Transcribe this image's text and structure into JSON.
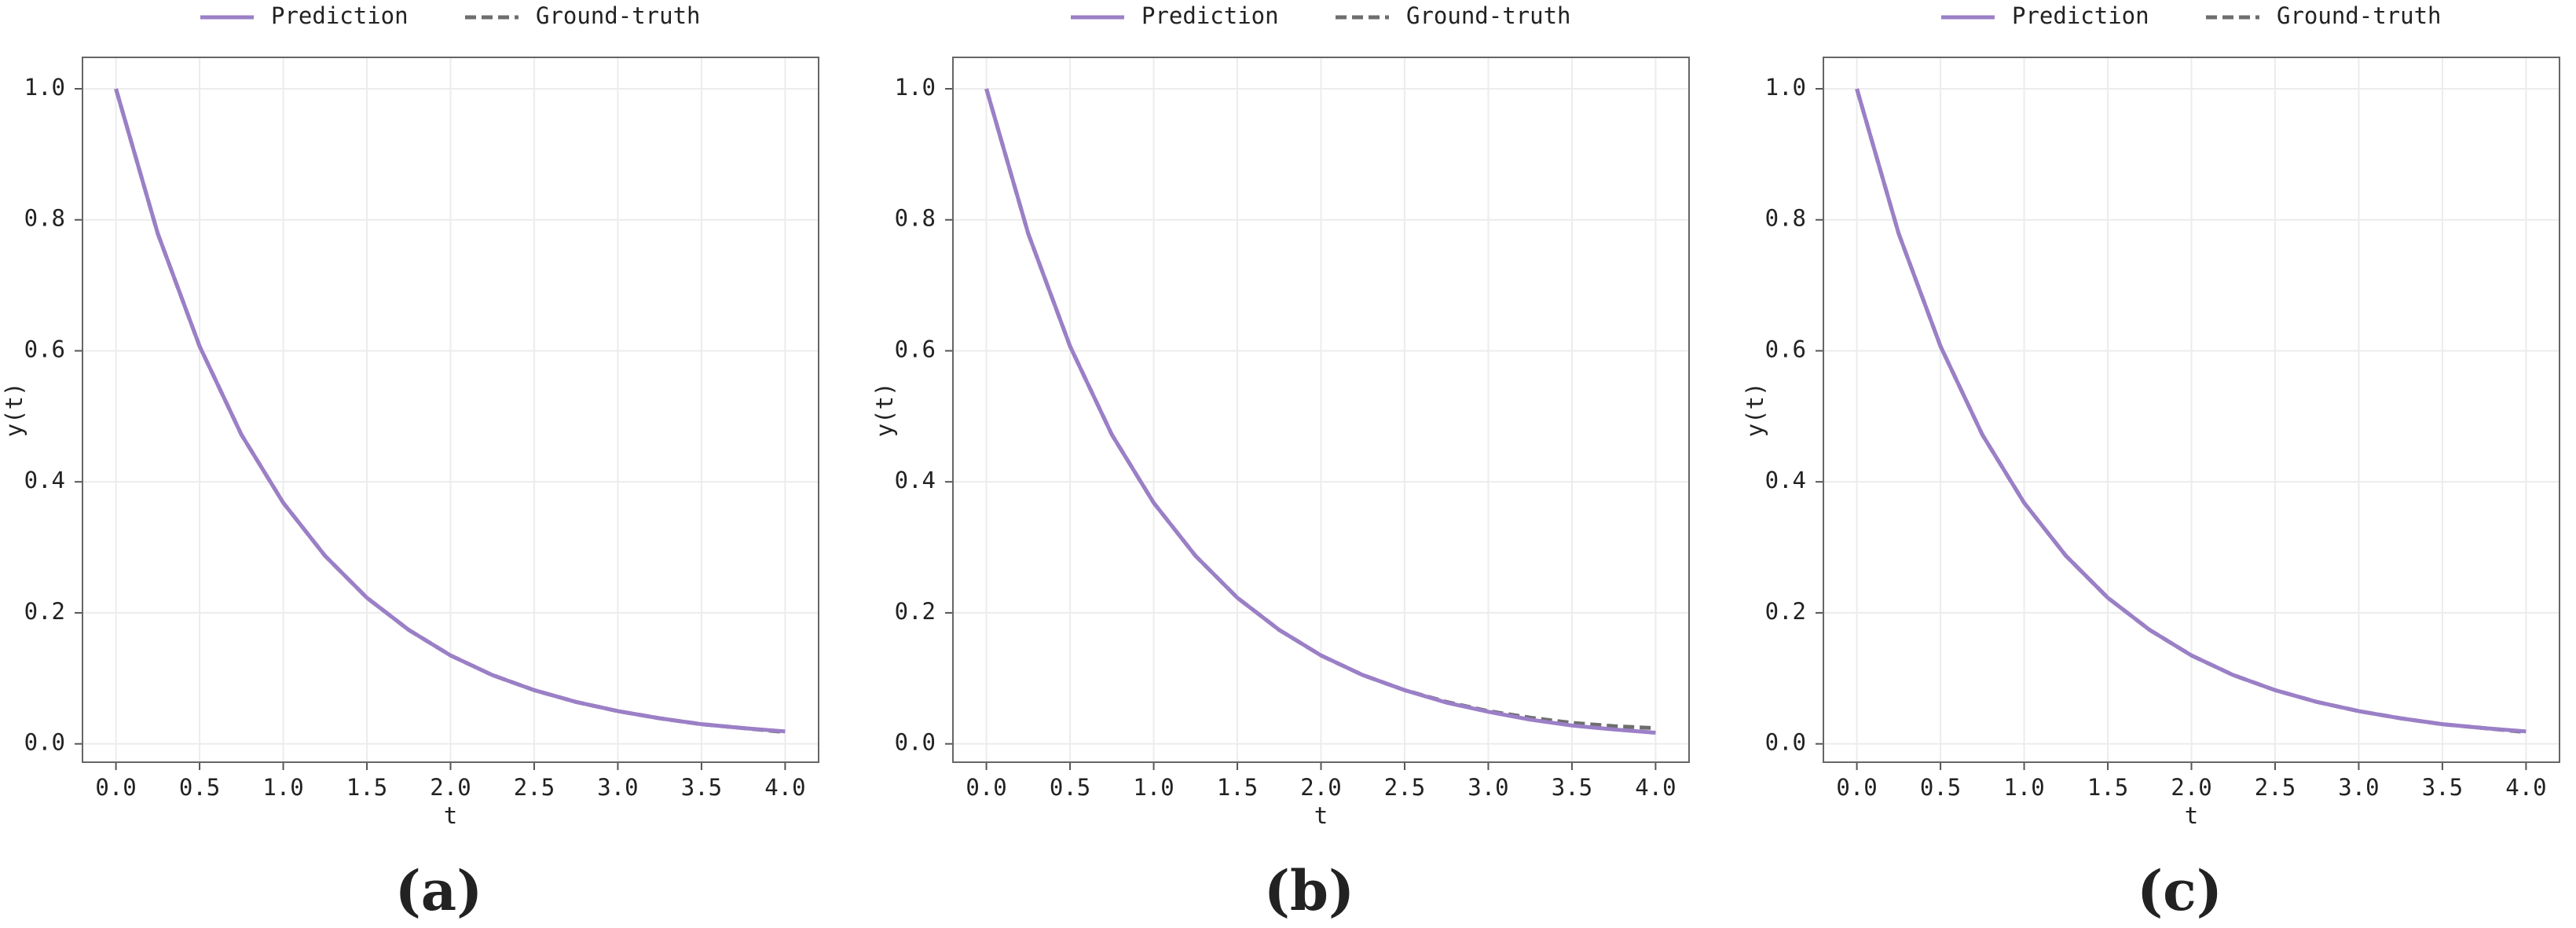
{
  "chart_data": [
    {
      "type": "line",
      "caption": "(a)",
      "x_label": "t",
      "y_label": "y(t)",
      "legend": "top",
      "grid": true,
      "x": [
        0,
        0.25,
        0.5,
        0.75,
        1,
        1.25,
        1.5,
        1.75,
        2,
        2.25,
        2.5,
        2.75,
        3,
        3.25,
        3.5,
        3.75,
        4
      ],
      "series": [
        {
          "name": "Prediction",
          "color": "#9b7fc7",
          "dash": false,
          "values": [
            1,
            0.779,
            0.607,
            0.472,
            0.368,
            0.287,
            0.223,
            0.174,
            0.135,
            0.105,
            0.082,
            0.064,
            0.05,
            0.039,
            0.03,
            0.024,
            0.019
          ]
        },
        {
          "name": "Ground-truth",
          "color": "#6e6e6e",
          "dash": true,
          "values": [
            1,
            0.779,
            0.607,
            0.472,
            0.368,
            0.287,
            0.223,
            0.174,
            0.135,
            0.105,
            0.082,
            0.064,
            0.05,
            0.039,
            0.03,
            0.024,
            0.018
          ]
        }
      ],
      "xlim": [
        -0.2,
        4.2
      ],
      "ylim": [
        -0.028,
        1.048
      ],
      "xticks": [
        {
          "value": 0,
          "label": "0.0"
        },
        0.5,
        {
          "value": 1,
          "label": "1.0"
        },
        1.5,
        {
          "value": 2,
          "label": "2.0"
        },
        2.5,
        {
          "value": 3,
          "label": "3.0"
        },
        3.5,
        {
          "value": 4,
          "label": "4.0"
        }
      ],
      "yticks": [
        {
          "value": 0,
          "label": "0.0"
        },
        0.2,
        0.4,
        0.6,
        0.8,
        {
          "value": 1,
          "label": "1.0"
        }
      ]
    },
    {
      "type": "line",
      "caption": "(b)",
      "x_label": "t",
      "y_label": "y(t)",
      "legend": "top",
      "grid": true,
      "x": [
        0,
        0.25,
        0.5,
        0.75,
        1,
        1.25,
        1.5,
        1.75,
        2,
        2.25,
        2.5,
        2.75,
        3,
        3.25,
        3.5,
        3.75,
        4
      ],
      "series": [
        {
          "name": "Prediction",
          "color": "#9b7fc7",
          "dash": false,
          "values": [
            1,
            0.779,
            0.607,
            0.472,
            0.368,
            0.287,
            0.223,
            0.174,
            0.135,
            0.105,
            0.082,
            0.063,
            0.049,
            0.037,
            0.028,
            0.022,
            0.017
          ]
        },
        {
          "name": "Ground-truth",
          "color": "#6e6e6e",
          "dash": true,
          "values": [
            1,
            0.779,
            0.607,
            0.472,
            0.368,
            0.287,
            0.223,
            0.174,
            0.135,
            0.105,
            0.082,
            0.064,
            0.05,
            0.04,
            0.032,
            0.027,
            0.024
          ]
        }
      ],
      "xlim": [
        -0.2,
        4.2
      ],
      "ylim": [
        -0.028,
        1.048
      ],
      "xticks": [
        {
          "value": 0,
          "label": "0.0"
        },
        0.5,
        {
          "value": 1,
          "label": "1.0"
        },
        1.5,
        {
          "value": 2,
          "label": "2.0"
        },
        2.5,
        {
          "value": 3,
          "label": "3.0"
        },
        3.5,
        {
          "value": 4,
          "label": "4.0"
        }
      ],
      "yticks": [
        {
          "value": 0,
          "label": "0.0"
        },
        0.2,
        0.4,
        0.6,
        0.8,
        {
          "value": 1,
          "label": "1.0"
        }
      ]
    },
    {
      "type": "line",
      "caption": "(c)",
      "x_label": "t",
      "y_label": "y(t)",
      "legend": "top",
      "grid": true,
      "x": [
        0,
        0.25,
        0.5,
        0.75,
        1,
        1.25,
        1.5,
        1.75,
        2,
        2.25,
        2.5,
        2.75,
        3,
        3.25,
        3.5,
        3.75,
        4
      ],
      "series": [
        {
          "name": "Prediction",
          "color": "#9b7fc7",
          "dash": false,
          "values": [
            1,
            0.779,
            0.607,
            0.472,
            0.368,
            0.287,
            0.223,
            0.174,
            0.135,
            0.105,
            0.082,
            0.064,
            0.05,
            0.039,
            0.03,
            0.024,
            0.019
          ]
        },
        {
          "name": "Ground-truth",
          "color": "#6e6e6e",
          "dash": true,
          "values": [
            1,
            0.779,
            0.607,
            0.472,
            0.368,
            0.287,
            0.223,
            0.174,
            0.135,
            0.105,
            0.082,
            0.064,
            0.05,
            0.039,
            0.03,
            0.024,
            0.018
          ]
        }
      ],
      "xlim": [
        -0.2,
        4.2
      ],
      "ylim": [
        -0.028,
        1.048
      ],
      "xticks": [
        {
          "value": 0,
          "label": "0.0"
        },
        0.5,
        {
          "value": 1,
          "label": "1.0"
        },
        1.5,
        {
          "value": 2,
          "label": "2.0"
        },
        2.5,
        {
          "value": 3,
          "label": "3.0"
        },
        3.5,
        {
          "value": 4,
          "label": "4.0"
        }
      ],
      "yticks": [
        {
          "value": 0,
          "label": "0.0"
        },
        0.2,
        0.4,
        0.6,
        0.8,
        {
          "value": 1,
          "label": "1.0"
        }
      ]
    }
  ]
}
